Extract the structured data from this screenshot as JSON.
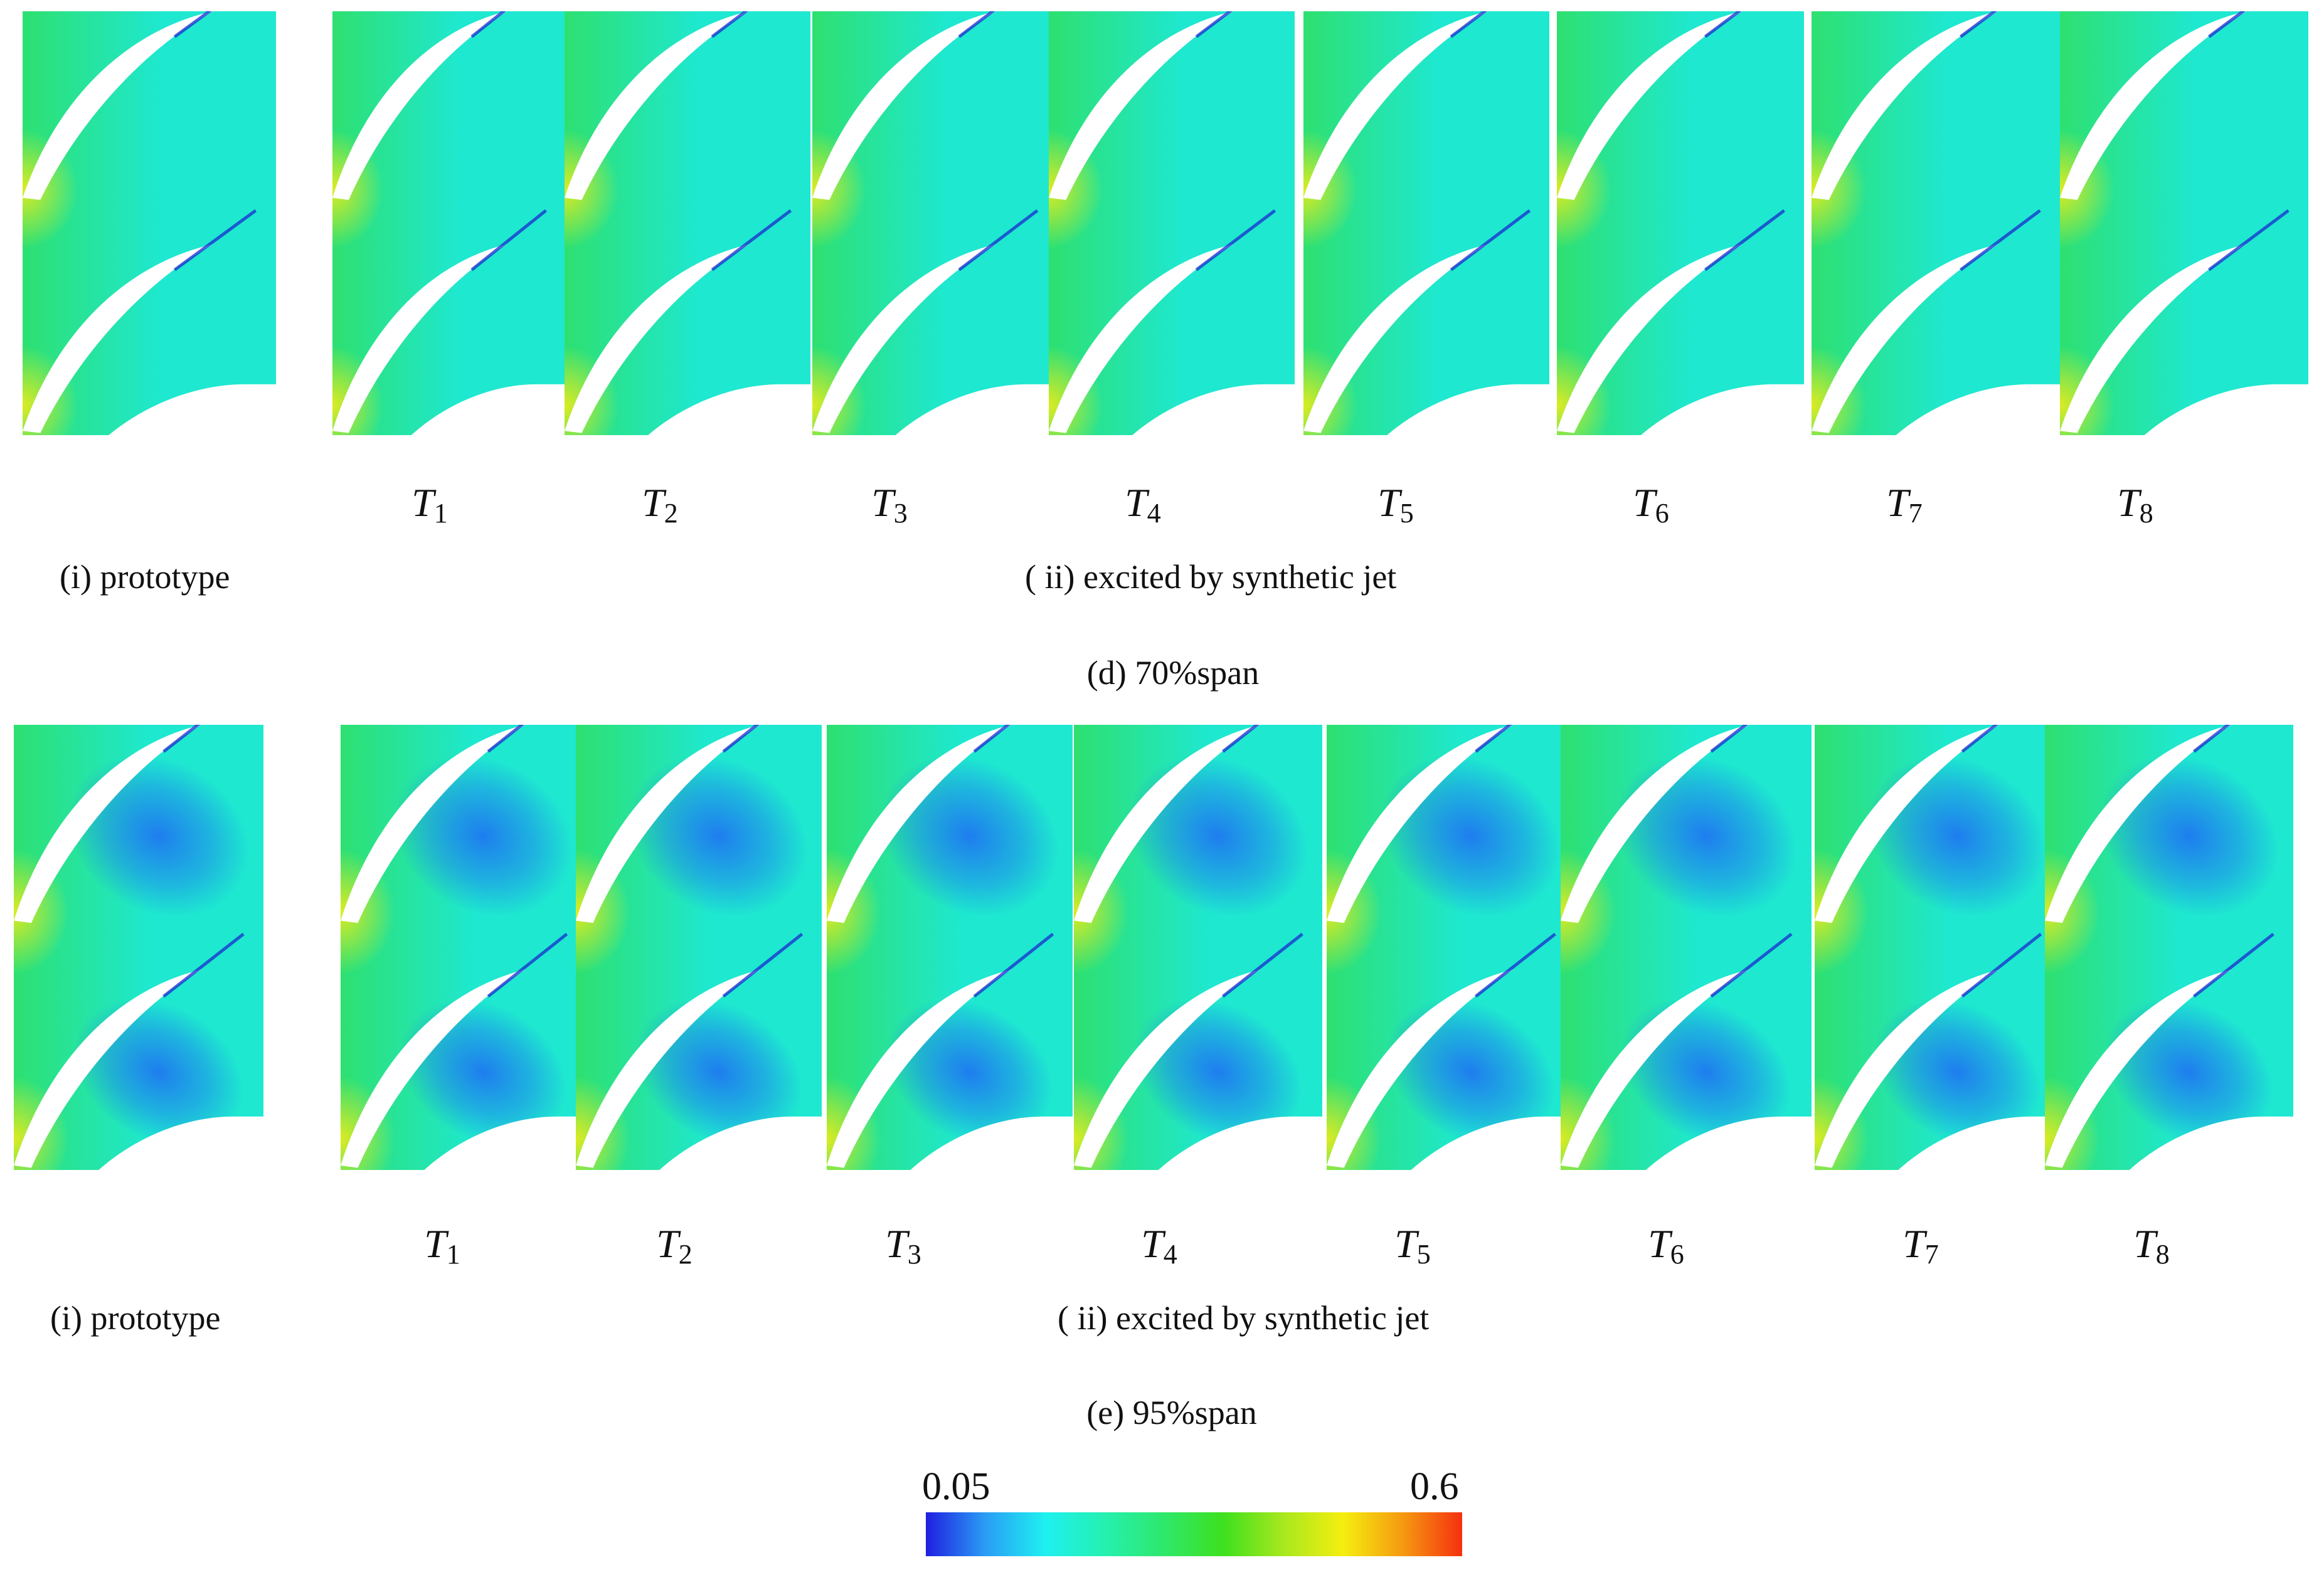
{
  "sections": [
    {
      "id": "70",
      "caption": "(d) 70%span",
      "prototype_label": "(i) prototype",
      "group_label": "( ii) excited by synthetic jet",
      "case_labels": [
        {
          "base": "T",
          "sub": "1"
        },
        {
          "base": "T",
          "sub": "2"
        },
        {
          "base": "T",
          "sub": "3"
        },
        {
          "base": "T",
          "sub": "4"
        },
        {
          "base": "T",
          "sub": "5"
        },
        {
          "base": "T",
          "sub": "6"
        },
        {
          "base": "T",
          "sub": "7"
        },
        {
          "base": "T",
          "sub": "8"
        }
      ]
    },
    {
      "id": "95",
      "caption": "(e) 95%span",
      "prototype_label": "(i) prototype",
      "group_label": "( ii) excited by synthetic jet",
      "case_labels": [
        {
          "base": "T",
          "sub": "1"
        },
        {
          "base": "T",
          "sub": "2"
        },
        {
          "base": "T",
          "sub": "3"
        },
        {
          "base": "T",
          "sub": "4"
        },
        {
          "base": "T",
          "sub": "5"
        },
        {
          "base": "T",
          "sub": "6"
        },
        {
          "base": "T",
          "sub": "7"
        },
        {
          "base": "T",
          "sub": "8"
        }
      ]
    }
  ],
  "colorbar": {
    "min_label": "0.05",
    "max_label": "0.6",
    "colors": [
      "#1f1fe0",
      "#2a9df5",
      "#1ef0f0",
      "#25f0b0",
      "#2ee86a",
      "#3ee01e",
      "#a8e81e",
      "#f5ee10",
      "#f59a10",
      "#f53010"
    ]
  },
  "colors": {
    "flow_green": "#2ee070",
    "flow_cyan": "#1ee8d0",
    "low_blue": "#1e78f0",
    "high_yellow": "#e6ec1e",
    "blade": "#ffffff"
  }
}
